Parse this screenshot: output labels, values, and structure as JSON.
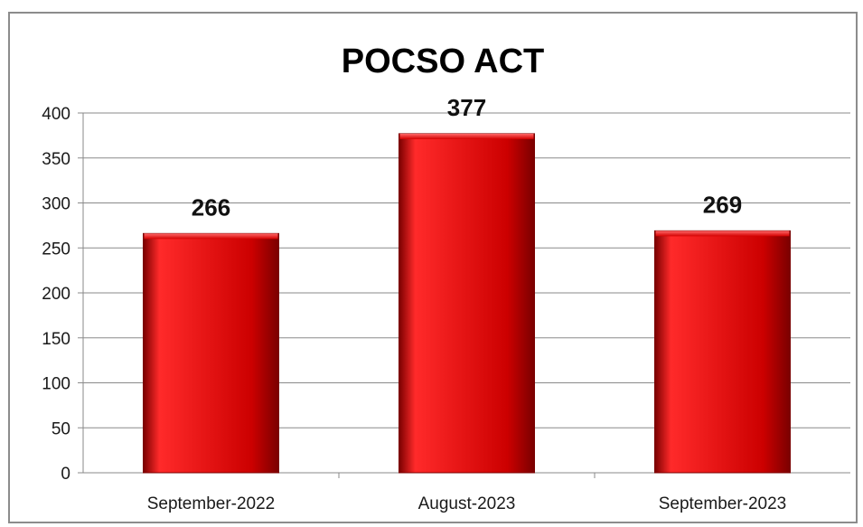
{
  "chart_data": {
    "type": "bar",
    "title": "POCSO ACT",
    "xlabel": "",
    "ylabel": "",
    "categories": [
      "September-2022",
      "August-2023",
      "September-2023"
    ],
    "values": [
      266,
      377,
      269
    ],
    "ylim": [
      0,
      400
    ],
    "yticks": [
      "0",
      "50",
      "100",
      "150",
      "200",
      "250",
      "300",
      "350",
      "400"
    ],
    "grid": true,
    "legend": "none",
    "bar_color": "#cc0000",
    "bar_highlight_color": "#ff2a2a",
    "bar_shadow_color": "#7a0000"
  }
}
